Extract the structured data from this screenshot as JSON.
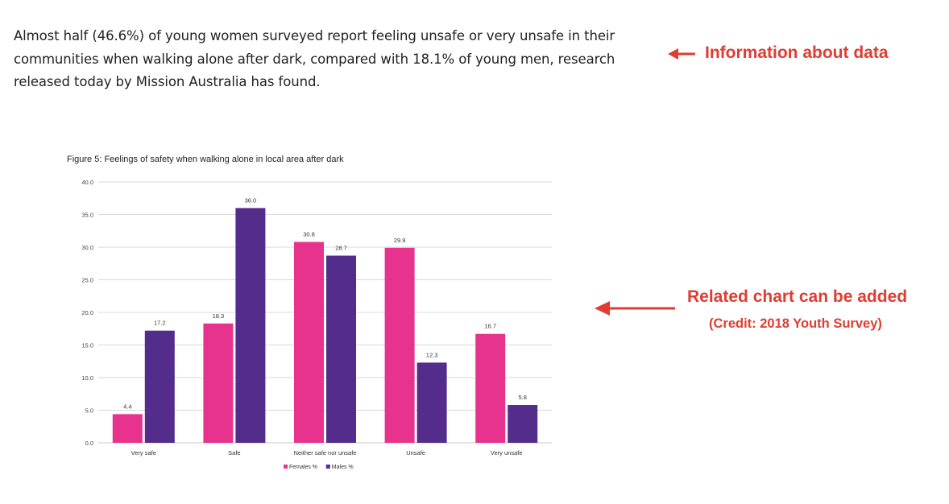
{
  "article": {
    "intro": "Almost half (46.6%) of young women surveyed report feeling unsafe or very unsafe in their communities when walking alone after dark, compared with 18.1% of young men, research released today by Mission Australia has found."
  },
  "annotations": {
    "info_label": "Information about data",
    "related_label": "Related chart can be added",
    "credit_label": "(Credit: 2018 Youth Survey)",
    "color": "#e03c31"
  },
  "chart_data": {
    "type": "bar",
    "title": "Figure 5: Feelings of safety when walking alone in local area after dark",
    "categories": [
      "Very safe",
      "Safe",
      "Neither safe nor unsafe",
      "Unsafe",
      "Very unsafe"
    ],
    "series": [
      {
        "name": "Females %",
        "values": [
          4.4,
          18.3,
          30.8,
          29.9,
          16.7
        ],
        "color": "#e8338e"
      },
      {
        "name": "Males %",
        "values": [
          17.2,
          36.0,
          28.7,
          12.3,
          5.8
        ],
        "color": "#542c8c"
      }
    ],
    "ylim": [
      0,
      40
    ],
    "yticks": [
      "0.0",
      "5.0",
      "10.0",
      "15.0",
      "20.0",
      "25.0",
      "30.0",
      "35.0",
      "40.0"
    ],
    "grid": true,
    "legend": "bottom"
  }
}
